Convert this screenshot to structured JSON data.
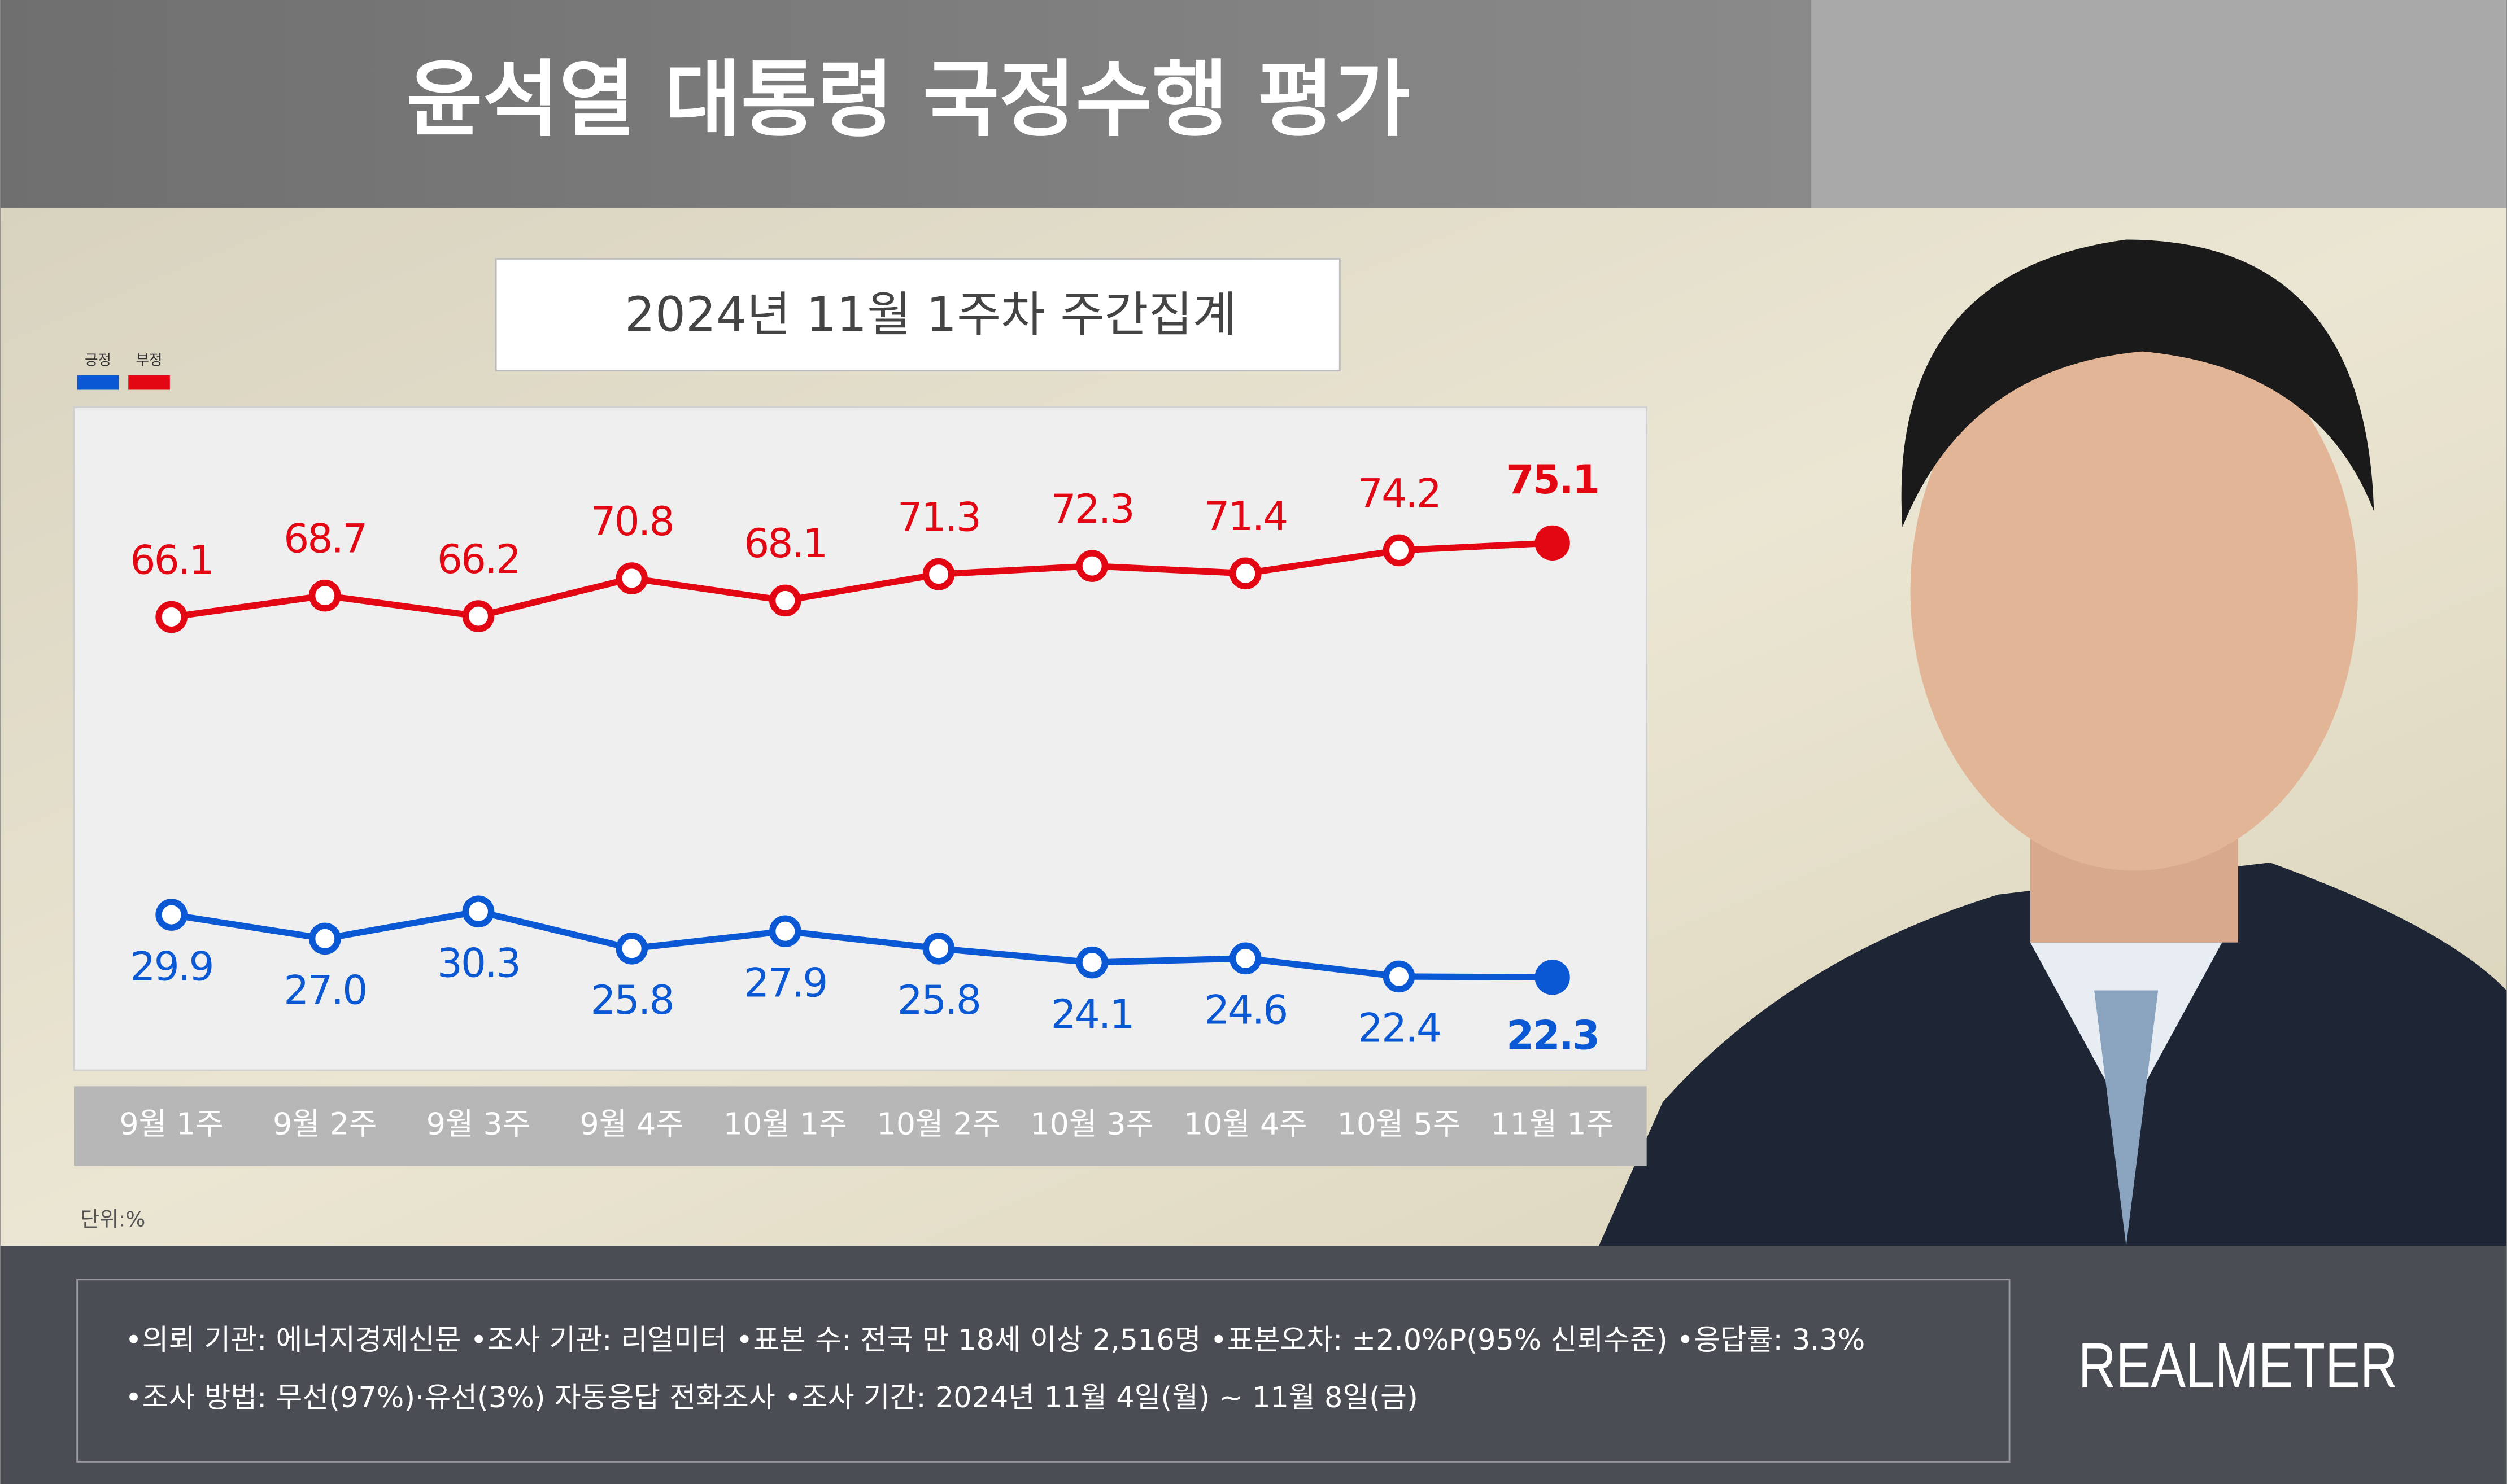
{
  "header": {
    "title": "윤석열 대통령 국정수행 평가"
  },
  "chart_data": {
    "type": "line",
    "subtitle": "2024년 11월 1주차 주간집계",
    "categories": [
      "9월 1주",
      "9월 2주",
      "9월 3주",
      "9월 4주",
      "10월 1주",
      "10월 2주",
      "10월 3주",
      "10월 4주",
      "10월 5주",
      "11월 1주"
    ],
    "series": [
      {
        "name": "긍정",
        "color": "#0a58d4",
        "values": [
          29.9,
          27.0,
          30.3,
          25.8,
          27.9,
          25.8,
          24.1,
          24.6,
          22.4,
          22.3
        ],
        "value_labels": [
          "29.9",
          "27.0",
          "30.3",
          "25.8",
          "27.9",
          "25.8",
          "24.1",
          "24.6",
          "22.4",
          "22.3"
        ]
      },
      {
        "name": "부정",
        "color": "#e30613",
        "values": [
          66.1,
          68.7,
          66.2,
          70.8,
          68.1,
          71.3,
          72.3,
          71.4,
          74.2,
          75.1
        ],
        "value_labels": [
          "66.1",
          "68.7",
          "66.2",
          "70.8",
          "68.1",
          "71.3",
          "72.3",
          "71.4",
          "74.2",
          "75.1"
        ]
      }
    ],
    "ylim": [
      11,
      91
    ],
    "unit": "단위:%"
  },
  "footer": {
    "lines": [
      "•의뢰 기관: 에너지경제신문 •조사 기관: 리얼미터 •표본 수: 전국 만 18세 이상 2,516명 •표본오차: ±2.0%P(95% 신뢰수준) •응답률: 3.3%",
      "•조사 방법: 무선(97%)·유선(3%) 자동응답 전화조사 •조사 기간: 2024년 11월 4일(월) ~ 11월 8일(금)"
    ],
    "logo": "REALMETER"
  }
}
